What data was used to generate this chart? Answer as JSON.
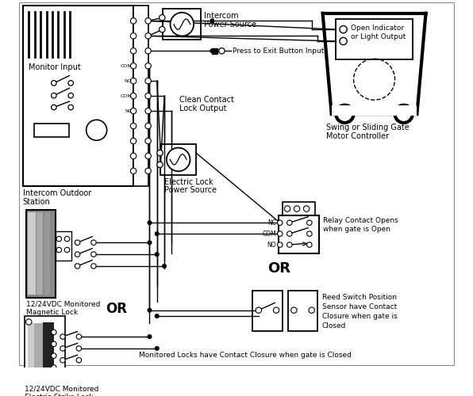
{
  "bg": "white",
  "labels": {
    "monitor_input": "Monitor Input",
    "intercom_outdoor_1": "Intercom Outdoor",
    "intercom_outdoor_2": "Station",
    "intercom_ps_1": "Intercom",
    "intercom_ps_2": "Power Source",
    "press_exit": "Press to Exit Button Input",
    "clean_contact_1": "Clean Contact",
    "clean_contact_2": "Lock Output",
    "electric_lock_1": "Electric Lock",
    "electric_lock_2": "Power Source",
    "magnetic_lock_1": "12/24VDC Monitored",
    "magnetic_lock_2": "Magnetic Lock",
    "electric_strike_1": "12/24VDC Monitored",
    "electric_strike_2": "Electric Strike Lock",
    "relay_1": "Relay Contact Opens",
    "relay_2": "when gate is Open",
    "reed_1": "Reed Switch Position",
    "reed_2": "Sensor have Contact",
    "reed_3": "Closure when gate is",
    "reed_4": "Closed",
    "gate_1": "Swing or Sliding Gate",
    "gate_2": "Motor Controller",
    "open_ind_1": "Open Indicator",
    "open_ind_2": "or Light Output",
    "or1": "OR",
    "or2": "OR",
    "monitored": "Monitored Locks have Contact Closure when gate is Closed",
    "nc": "NC",
    "com": "COM",
    "no": "NO"
  }
}
